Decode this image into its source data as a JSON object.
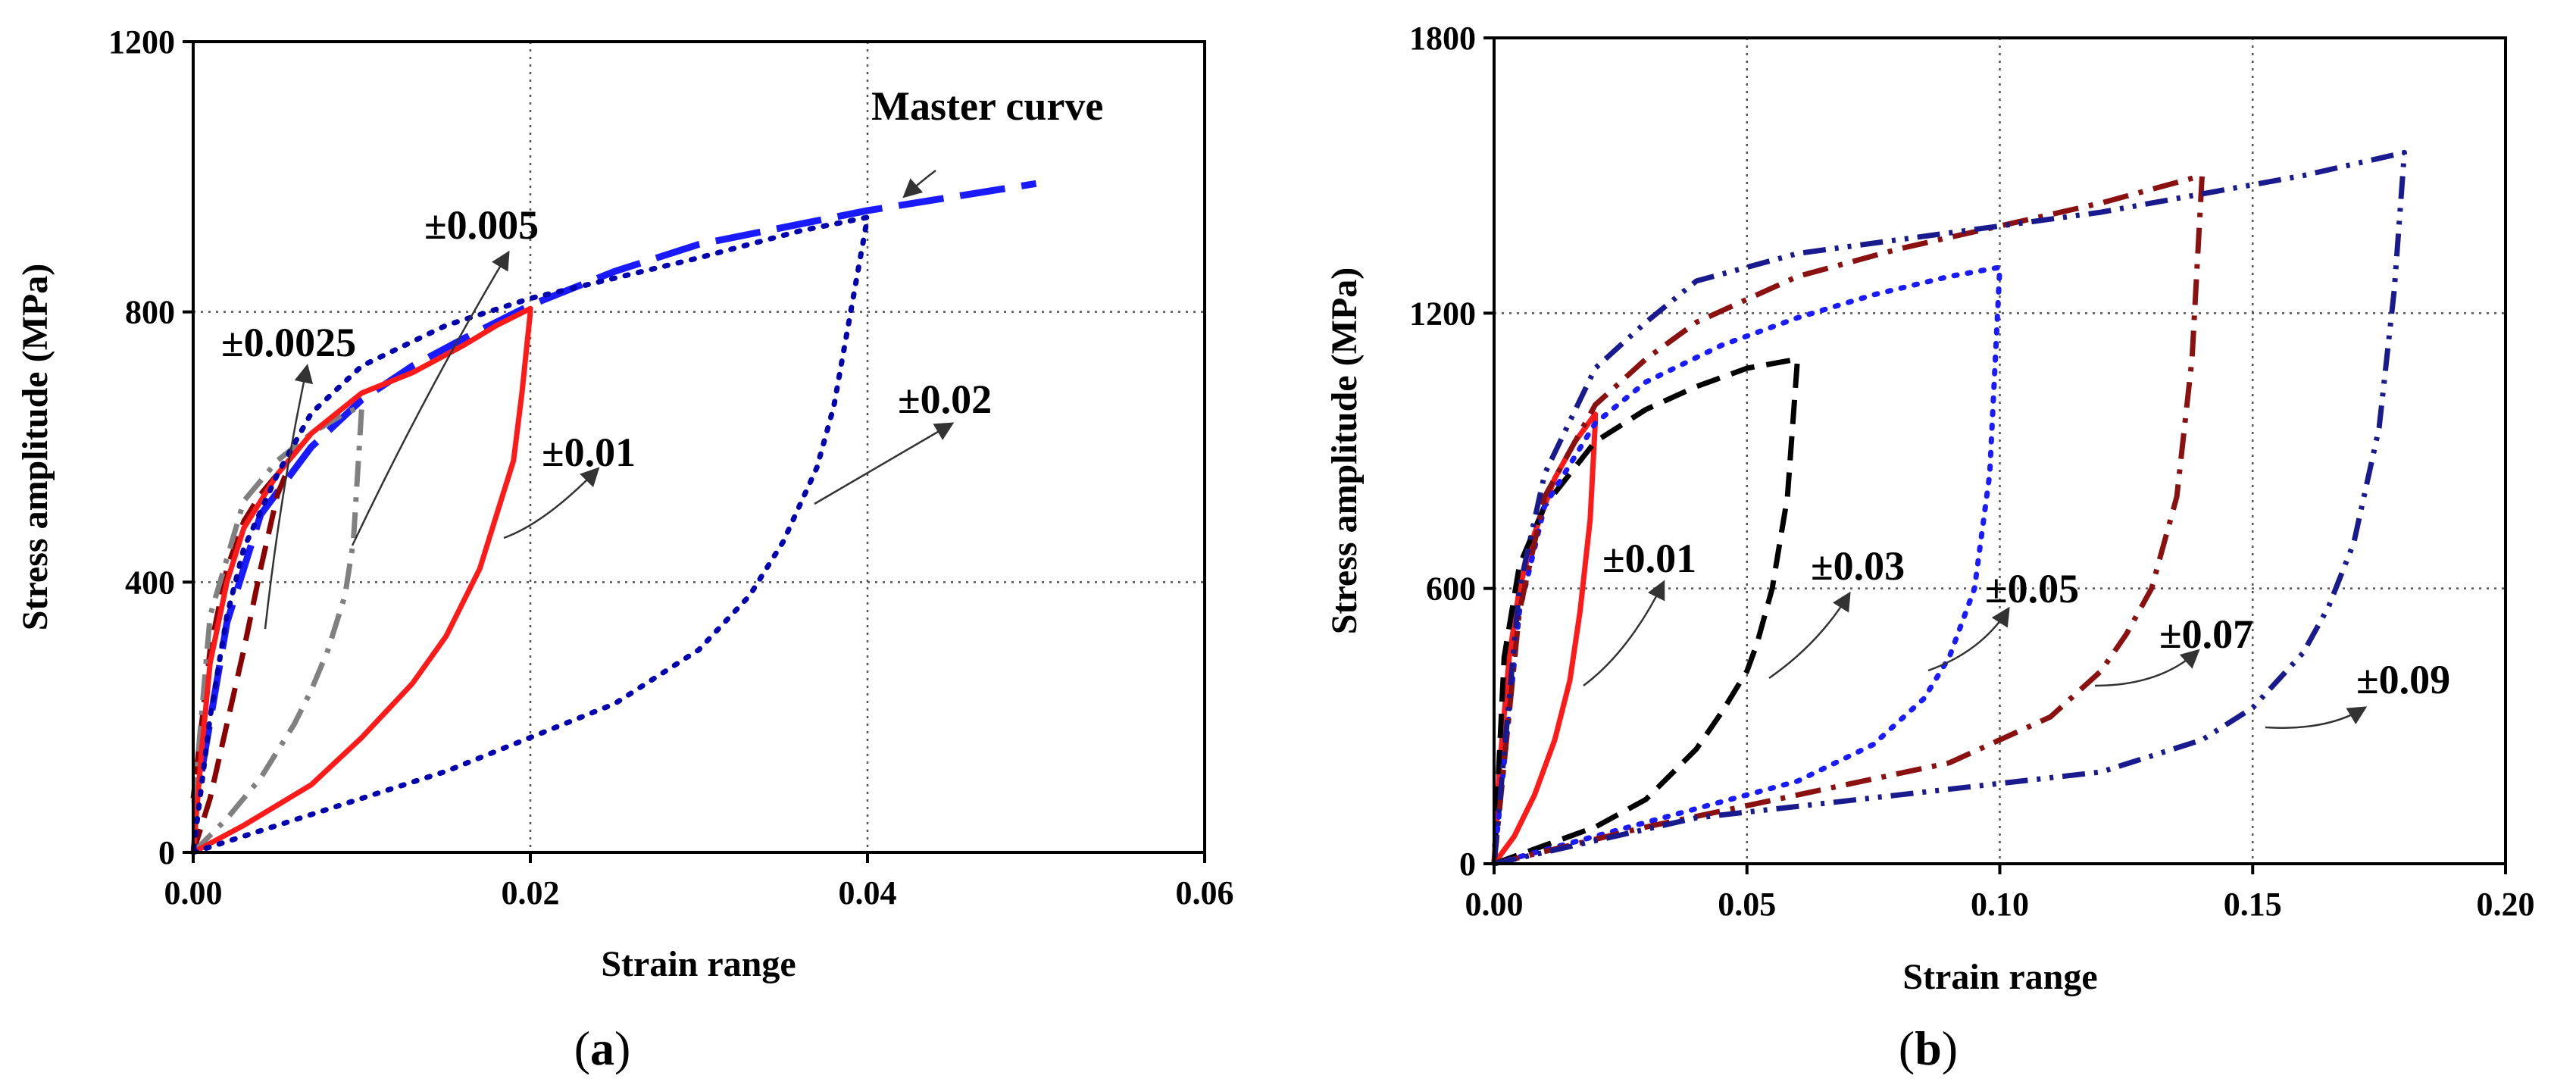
{
  "figure": {
    "panel_a_label": "a",
    "panel_b_label": "b"
  },
  "chart_data": [
    {
      "panel": "a",
      "type": "line",
      "title": "",
      "xlabel": "Strain range",
      "ylabel": "Stress amplitude (MPa)",
      "xlim": [
        0,
        0.06
      ],
      "ylim": [
        0,
        1200
      ],
      "xticks": [
        0,
        0.02,
        0.04,
        0.06
      ],
      "xticklabels": [
        "0.00",
        "0.02",
        "0.04",
        "0.06"
      ],
      "yticks": [
        0,
        400,
        800,
        1200
      ],
      "yticklabels": [
        "0",
        "400",
        "800",
        "1200"
      ],
      "grid_x": [
        0.02,
        0.04
      ],
      "grid_y": [
        400,
        800
      ],
      "annotations": [
        "Master curve",
        "±0.005",
        "±0.0025",
        "±0.01",
        "±0.02"
      ],
      "series": [
        {
          "name": "Master curve",
          "color": "#1a1aff",
          "dash": "long-dash",
          "width": 9,
          "x": [
            0.0005,
            0.002,
            0.004,
            0.007,
            0.01,
            0.013,
            0.016,
            0.02,
            0.025,
            0.03,
            0.035,
            0.04,
            0.045,
            0.05
          ],
          "y": [
            120,
            340,
            500,
            600,
            670,
            720,
            760,
            810,
            860,
            900,
            925,
            950,
            970,
            990
          ]
        },
        {
          "name": "±0.0025",
          "color": "#8b0000",
          "dash": "dash",
          "width": 7,
          "x": [
            0,
            0.001,
            0.002,
            0.003,
            0.004,
            0.005,
            0.0055,
            0.005,
            0.004,
            0.003,
            0.002,
            0.001,
            0
          ],
          "y": [
            0,
            80,
            190,
            300,
            420,
            530,
            560,
            560,
            530,
            490,
            420,
            300,
            80
          ]
        },
        {
          "name": "±0.005",
          "color": "#808080",
          "dash": "dash-dot",
          "width": 7,
          "x": [
            0,
            0.002,
            0.004,
            0.006,
            0.007,
            0.008,
            0.009,
            0.0095,
            0.01,
            0.009,
            0.007,
            0.005,
            0.003,
            0.001,
            0
          ],
          "y": [
            0,
            50,
            110,
            190,
            240,
            300,
            380,
            460,
            660,
            650,
            620,
            580,
            520,
            350,
            60
          ]
        },
        {
          "name": "±0.01",
          "color": "#ff1a1a",
          "dash": "solid",
          "width": 7,
          "x": [
            0,
            0.003,
            0.007,
            0.01,
            0.013,
            0.015,
            0.017,
            0.018,
            0.019,
            0.0195,
            0.02,
            0.02,
            0.018,
            0.016,
            0.013,
            0.01,
            0.007,
            0.005,
            0.003,
            0.002,
            0.001,
            0.0005,
            0
          ],
          "y": [
            0,
            40,
            100,
            170,
            250,
            320,
            420,
            500,
            580,
            680,
            800,
            805,
            780,
            750,
            710,
            680,
            620,
            560,
            480,
            400,
            280,
            150,
            0
          ]
        },
        {
          "name": "±0.02",
          "color": "#0000b0",
          "dash": "dot",
          "width": 7,
          "x": [
            0,
            0.005,
            0.01,
            0.015,
            0.02,
            0.025,
            0.03,
            0.033,
            0.035,
            0.037,
            0.038,
            0.039,
            0.04,
            0.036,
            0.03,
            0.025,
            0.02,
            0.015,
            0.01,
            0.007,
            0.005,
            0.003,
            0.002,
            0.001,
            0
          ],
          "y": [
            0,
            40,
            80,
            120,
            170,
            220,
            300,
            380,
            460,
            570,
            660,
            800,
            940,
            920,
            880,
            850,
            820,
            780,
            720,
            650,
            560,
            450,
            350,
            200,
            0
          ]
        }
      ]
    },
    {
      "panel": "b",
      "type": "line",
      "title": "",
      "xlabel": "Strain range",
      "ylabel": "Stress amplitude (MPa)",
      "xlim": [
        0,
        0.2
      ],
      "ylim": [
        0,
        1800
      ],
      "xticks": [
        0,
        0.05,
        0.1,
        0.15,
        0.2
      ],
      "xticklabels": [
        "0.00",
        "0.05",
        "0.10",
        "0.15",
        "0.20"
      ],
      "yticks": [
        0,
        600,
        1200,
        1800
      ],
      "yticklabels": [
        "0",
        "600",
        "1200",
        "1800"
      ],
      "grid_x": [
        0.05,
        0.1,
        0.15
      ],
      "grid_y": [
        600,
        1200
      ],
      "annotations": [
        "±0.01",
        "±0.03",
        "±0.05",
        "±0.07",
        "±0.09"
      ],
      "series": [
        {
          "name": "±0.01",
          "color": "#ff1a1a",
          "dash": "solid",
          "width": 7,
          "x": [
            0,
            0.004,
            0.008,
            0.012,
            0.015,
            0.017,
            0.019,
            0.02,
            0.02,
            0.016,
            0.012,
            0.008,
            0.005,
            0.003,
            0.001,
            0
          ],
          "y": [
            0,
            60,
            150,
            270,
            400,
            550,
            750,
            960,
            980,
            920,
            840,
            720,
            600,
            450,
            200,
            0
          ]
        },
        {
          "name": "±0.03",
          "color": "#000000",
          "dash": "dash",
          "width": 7,
          "x": [
            0,
            0.01,
            0.02,
            0.03,
            0.04,
            0.045,
            0.05,
            0.052,
            0.055,
            0.058,
            0.06,
            0.06,
            0.05,
            0.04,
            0.03,
            0.02,
            0.015,
            0.01,
            0.005,
            0.002,
            0
          ],
          "y": [
            0,
            40,
            80,
            140,
            250,
            330,
            420,
            480,
            600,
            800,
            1100,
            1100,
            1080,
            1040,
            990,
            920,
            850,
            780,
            650,
            450,
            0
          ]
        },
        {
          "name": "±0.05",
          "color": "#1a1aff",
          "dash": "dot",
          "width": 7,
          "x": [
            0,
            0.02,
            0.04,
            0.06,
            0.075,
            0.085,
            0.09,
            0.095,
            0.098,
            0.1,
            0.1,
            0.09,
            0.075,
            0.06,
            0.045,
            0.03,
            0.02,
            0.01,
            0.005,
            0
          ],
          "y": [
            0,
            60,
            120,
            180,
            260,
            360,
            450,
            600,
            850,
            1300,
            1300,
            1280,
            1240,
            1190,
            1130,
            1050,
            960,
            780,
            550,
            0
          ]
        },
        {
          "name": "±0.07",
          "color": "#8b1010",
          "dash": "dash-dot",
          "width": 7,
          "x": [
            0,
            0.03,
            0.06,
            0.09,
            0.11,
            0.12,
            0.125,
            0.13,
            0.135,
            0.138,
            0.14,
            0.14,
            0.12,
            0.1,
            0.08,
            0.06,
            0.04,
            0.03,
            0.02,
            0.01,
            0.005,
            0
          ],
          "y": [
            0,
            80,
            150,
            220,
            320,
            420,
            500,
            600,
            800,
            1100,
            1500,
            1500,
            1440,
            1390,
            1340,
            1280,
            1180,
            1100,
            1000,
            800,
            550,
            0
          ]
        },
        {
          "name": "±0.09",
          "color": "#1a1a8f",
          "dash": "dash-dot-dot",
          "width": 7,
          "x": [
            0,
            0.04,
            0.08,
            0.12,
            0.14,
            0.15,
            0.16,
            0.165,
            0.17,
            0.175,
            0.178,
            0.18,
            0.18,
            0.16,
            0.14,
            0.12,
            0.1,
            0.08,
            0.06,
            0.04,
            0.03,
            0.02,
            0.01,
            0.005,
            0
          ],
          "y": [
            0,
            100,
            150,
            200,
            270,
            340,
            460,
            560,
            700,
            950,
            1250,
            1550,
            1550,
            1500,
            1460,
            1420,
            1390,
            1360,
            1330,
            1270,
            1180,
            1080,
            850,
            600,
            0
          ]
        }
      ]
    }
  ]
}
